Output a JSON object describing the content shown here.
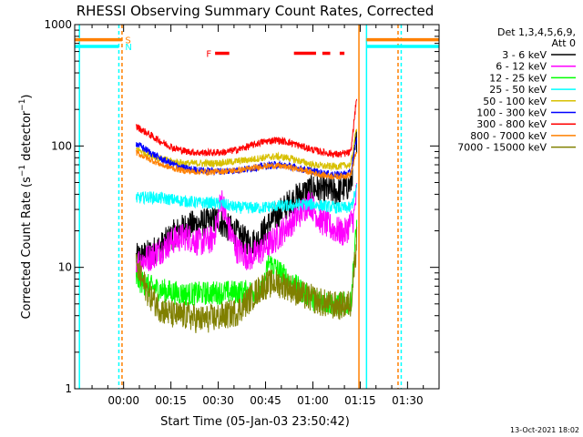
{
  "chart_data": {
    "type": "line",
    "title": "RHESSI Observing Summary Count Rates, Corrected",
    "xlabel": "Start Time (05-Jan-03 23:50:42)",
    "ylabel": "Corrected Count Rate (s⁻¹ detector⁻¹)",
    "ylabel_parts": [
      "Corrected Count Rate (s",
      "−1",
      " detector",
      "−1",
      ")"
    ],
    "yscale": "log",
    "ylim": [
      1,
      1000
    ],
    "xlim_minutes": [
      -15.5,
      100
    ],
    "x_unit": "minutes after start",
    "x_ticks": [
      {
        "v": 0,
        "label": "00:00"
      },
      {
        "v": 15,
        "label": "00:15"
      },
      {
        "v": 30,
        "label": "00:30"
      },
      {
        "v": 45,
        "label": "00:45"
      },
      {
        "v": 60,
        "label": "01:00"
      },
      {
        "v": 75,
        "label": "01:15"
      },
      {
        "v": 90,
        "label": "01:30"
      }
    ],
    "y_ticks": [
      {
        "v": 1,
        "label": "1"
      },
      {
        "v": 10,
        "label": "10"
      },
      {
        "v": 100,
        "label": "100"
      },
      {
        "v": 1000,
        "label": "1000"
      }
    ],
    "legend": {
      "placement": "right",
      "header": [
        "Det 1,3,4,5,6,9,",
        "Att 0"
      ]
    },
    "series": [
      {
        "name": "3 - 6 keV",
        "color": "#000000",
        "noise": 0.12,
        "x": [
          4,
          8,
          12,
          16,
          20,
          24,
          28,
          30,
          32,
          35,
          38,
          42,
          45,
          48,
          52,
          56,
          60,
          64,
          68,
          72,
          74
        ],
        "y": [
          12,
          13,
          15,
          19,
          22,
          23,
          24,
          25,
          22,
          20,
          17,
          16,
          21,
          26,
          33,
          40,
          45,
          43,
          42,
          48,
          120
        ]
      },
      {
        "name": "6 - 12 keV",
        "color": "#ff00ff",
        "noise": 0.12,
        "x": [
          4,
          8,
          12,
          16,
          20,
          24,
          28,
          29.5,
          31,
          33,
          36,
          40,
          44,
          48,
          52,
          56,
          59,
          62,
          66,
          70,
          73,
          74
        ],
        "y": [
          11,
          12,
          14,
          17,
          18,
          16,
          17,
          22,
          38,
          22,
          14,
          12,
          14,
          17,
          22,
          28,
          35,
          25,
          21,
          19,
          26,
          45
        ]
      },
      {
        "name": "12 - 25 keV",
        "color": "#00ff00",
        "noise": 0.1,
        "x": [
          4,
          8,
          12,
          16,
          20,
          30,
          40,
          44,
          46,
          48,
          52,
          56,
          60,
          66,
          72,
          74
        ],
        "y": [
          8,
          7,
          6.5,
          6.2,
          6,
          6.2,
          6.3,
          6.3,
          11,
          10,
          8,
          6.5,
          5.5,
          5,
          5,
          25
        ]
      },
      {
        "name": "25 - 50 keV",
        "color": "#00ffff",
        "noise": 0.05,
        "x": [
          4,
          8,
          12,
          16,
          20,
          24,
          28,
          32,
          36,
          40,
          44,
          48,
          52,
          56,
          60,
          64,
          68,
          72,
          74
        ],
        "y": [
          37,
          38,
          37,
          36,
          35,
          34,
          34,
          33,
          31,
          31,
          31,
          32,
          32,
          33,
          33,
          32,
          31,
          31,
          45
        ]
      },
      {
        "name": "50 - 100 keV",
        "color": "#d8c000",
        "noise": 0.03,
        "x": [
          4,
          8,
          12,
          16,
          20,
          24,
          28,
          32,
          36,
          40,
          44,
          48,
          52,
          56,
          60,
          64,
          68,
          72,
          74
        ],
        "y": [
          95,
          85,
          78,
          74,
          72,
          72,
          72,
          73,
          75,
          77,
          80,
          82,
          80,
          75,
          70,
          68,
          68,
          70,
          150
        ]
      },
      {
        "name": "100 - 300 keV",
        "color": "#0000ff",
        "noise": 0.03,
        "x": [
          4,
          8,
          12,
          16,
          20,
          24,
          28,
          32,
          36,
          40,
          44,
          48,
          52,
          56,
          60,
          64,
          68,
          72,
          74
        ],
        "y": [
          105,
          90,
          78,
          70,
          65,
          63,
          62,
          62,
          63,
          65,
          68,
          70,
          69,
          65,
          62,
          59,
          58,
          60,
          120
        ]
      },
      {
        "name": "300 - 800 keV",
        "color": "#ff0000",
        "noise": 0.03,
        "x": [
          4,
          8,
          12,
          16,
          20,
          24,
          28,
          32,
          36,
          40,
          44,
          48,
          52,
          56,
          60,
          64,
          68,
          72,
          74
        ],
        "y": [
          145,
          125,
          108,
          96,
          90,
          88,
          88,
          89,
          93,
          100,
          108,
          112,
          108,
          100,
          93,
          88,
          85,
          88,
          270
        ]
      },
      {
        "name": "800 - 7000 keV",
        "color": "#ff8000",
        "noise": 0.025,
        "x": [
          4,
          8,
          12,
          16,
          20,
          24,
          28,
          32,
          36,
          40,
          44,
          48,
          52,
          56,
          60,
          64,
          68,
          72,
          74
        ],
        "y": [
          88,
          78,
          70,
          65,
          62,
          61,
          61,
          62,
          63,
          65,
          68,
          69,
          67,
          64,
          60,
          57,
          56,
          58,
          95
        ]
      },
      {
        "name": "7000 - 15000 keV",
        "color": "#808000",
        "noise": 0.12,
        "x": [
          4,
          8,
          12,
          16,
          20,
          24,
          28,
          32,
          36,
          40,
          44,
          48,
          52,
          56,
          60,
          64,
          68,
          72,
          74
        ],
        "y": [
          10,
          6,
          4.5,
          4,
          4,
          3.7,
          3.8,
          4,
          4.3,
          5.5,
          7,
          7.5,
          7,
          6,
          5.5,
          5,
          4.8,
          5,
          18
        ]
      }
    ],
    "vertical_markers": [
      {
        "x": -14,
        "color": "#00ffff",
        "style": "solid"
      },
      {
        "x": -1.5,
        "color": "#00ffff",
        "style": "dashed"
      },
      {
        "x": -0.5,
        "color": "#ff8000",
        "style": "dashed"
      },
      {
        "x": 74.6,
        "color": "#ff8000",
        "style": "solid"
      },
      {
        "x": 77,
        "color": "#00ffff",
        "style": "solid"
      },
      {
        "x": 87,
        "color": "#ff8000",
        "style": "dashed"
      },
      {
        "x": 88,
        "color": "#00ffff",
        "style": "dashed"
      }
    ],
    "flag_bars": [
      {
        "label": "S",
        "color": "#ff8000",
        "y": 750,
        "segments": [
          [
            -15.5,
            -0.5
          ],
          [
            77,
            100
          ]
        ]
      },
      {
        "label": "N",
        "color": "#00ffff",
        "y": 660,
        "segments": [
          [
            -15.5,
            -1.5
          ],
          [
            77,
            100
          ]
        ]
      },
      {
        "label": "F",
        "color": "#ff0000",
        "y": 580,
        "segments": [
          [
            29,
            33.5
          ],
          [
            54,
            61
          ],
          [
            63,
            65.5
          ],
          [
            68.5,
            70
          ]
        ]
      }
    ],
    "timestamp": "13-Oct-2021 18:02"
  }
}
